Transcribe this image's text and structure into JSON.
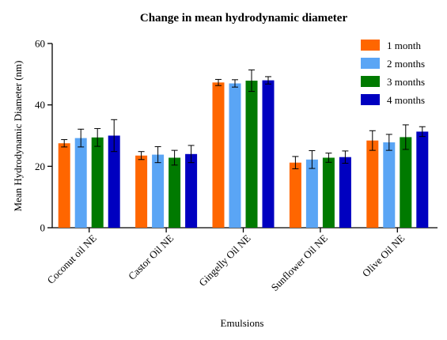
{
  "chart_data": {
    "type": "bar",
    "title": "Change in mean hydrodynamic diameter",
    "xlabel": "Emulsions",
    "ylabel": "Mean Hydrodynamic Diameter (nm)",
    "ylim": [
      0,
      60
    ],
    "yticks": [
      0,
      20,
      40,
      60
    ],
    "grid": false,
    "legend_position": "top-right",
    "error_bars": true,
    "categories": [
      "Coconut oil NE",
      "Castor Oil NE",
      "Gingelly Oil NE",
      "Sunflower Oil NE",
      "Olive Oil NE"
    ],
    "series": [
      {
        "name": "1 month",
        "color": "#FF6600",
        "values": [
          27.5,
          23.5,
          47.3,
          21.2,
          28.4
        ],
        "errors": [
          1.2,
          1.3,
          1.0,
          2.0,
          3.2
        ]
      },
      {
        "name": "2 months",
        "color": "#5AA5F5",
        "values": [
          29.2,
          23.8,
          47.0,
          22.2,
          27.8
        ],
        "errors": [
          2.9,
          2.6,
          1.2,
          2.9,
          2.6
        ]
      },
      {
        "name": "3 months",
        "color": "#007A00",
        "values": [
          29.4,
          22.8,
          47.9,
          22.8,
          29.5
        ],
        "errors": [
          2.9,
          2.4,
          3.5,
          1.5,
          4.0
        ]
      },
      {
        "name": "4 months",
        "color": "#0000C0",
        "values": [
          30.0,
          24.0,
          48.0,
          23.0,
          31.3
        ],
        "errors": [
          5.2,
          2.8,
          1.2,
          2.0,
          1.6
        ]
      }
    ]
  }
}
